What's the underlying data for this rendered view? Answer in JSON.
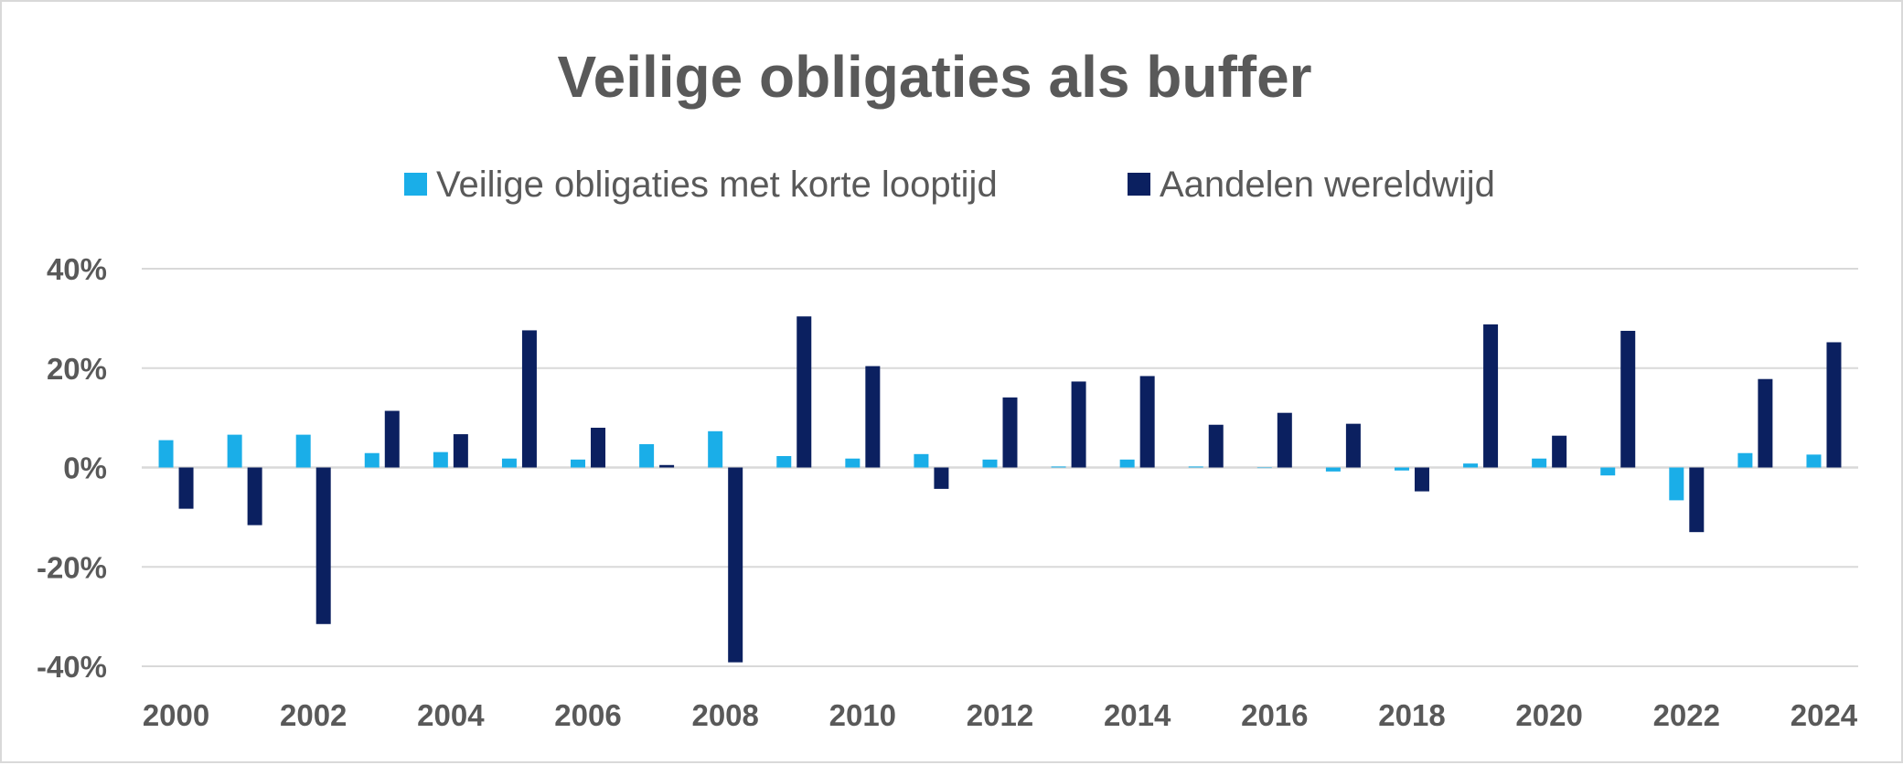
{
  "chart_data": {
    "type": "bar",
    "title": "Veilige obligaties als buffer",
    "xlabel": "",
    "ylabel": "",
    "ylim": [
      -40,
      40
    ],
    "y_ticks": [
      "-40%",
      "-20%",
      "0%",
      "20%",
      "40%"
    ],
    "y_tick_values": [
      -40,
      -20,
      0,
      20,
      40
    ],
    "categories": [
      "2000",
      "2001",
      "2002",
      "2003",
      "2004",
      "2005",
      "2006",
      "2007",
      "2008",
      "2009",
      "2010",
      "2011",
      "2012",
      "2013",
      "2014",
      "2015",
      "2016",
      "2017",
      "2018",
      "2019",
      "2020",
      "2021",
      "2022",
      "2023",
      "2024"
    ],
    "x_tick_labels": [
      "2000",
      "2002",
      "2004",
      "2006",
      "2008",
      "2010",
      "2012",
      "2014",
      "2016",
      "2018",
      "2020",
      "2022",
      "2024"
    ],
    "legend_position": "top",
    "grid": true,
    "series": [
      {
        "name": "Veilige obligaties met korte looptijd",
        "color": "#1AAEE8",
        "values": [
          5.5,
          6.6,
          6.6,
          2.9,
          3.1,
          1.8,
          1.6,
          4.7,
          7.3,
          2.3,
          1.8,
          2.7,
          1.6,
          0.2,
          1.6,
          0.2,
          0.0,
          -0.8,
          -0.6,
          0.8,
          1.8,
          -1.6,
          -6.6,
          2.9,
          2.6
        ]
      },
      {
        "name": "Aandelen wereldwijd",
        "color": "#0B2060",
        "values": [
          -8.3,
          -11.6,
          -31.5,
          11.4,
          6.7,
          27.6,
          8.0,
          0.5,
          -39.2,
          30.4,
          20.4,
          -4.3,
          14.1,
          17.3,
          18.4,
          8.6,
          11.0,
          8.8,
          -4.8,
          28.8,
          6.4,
          27.5,
          -13.0,
          17.8,
          25.2
        ]
      }
    ]
  }
}
